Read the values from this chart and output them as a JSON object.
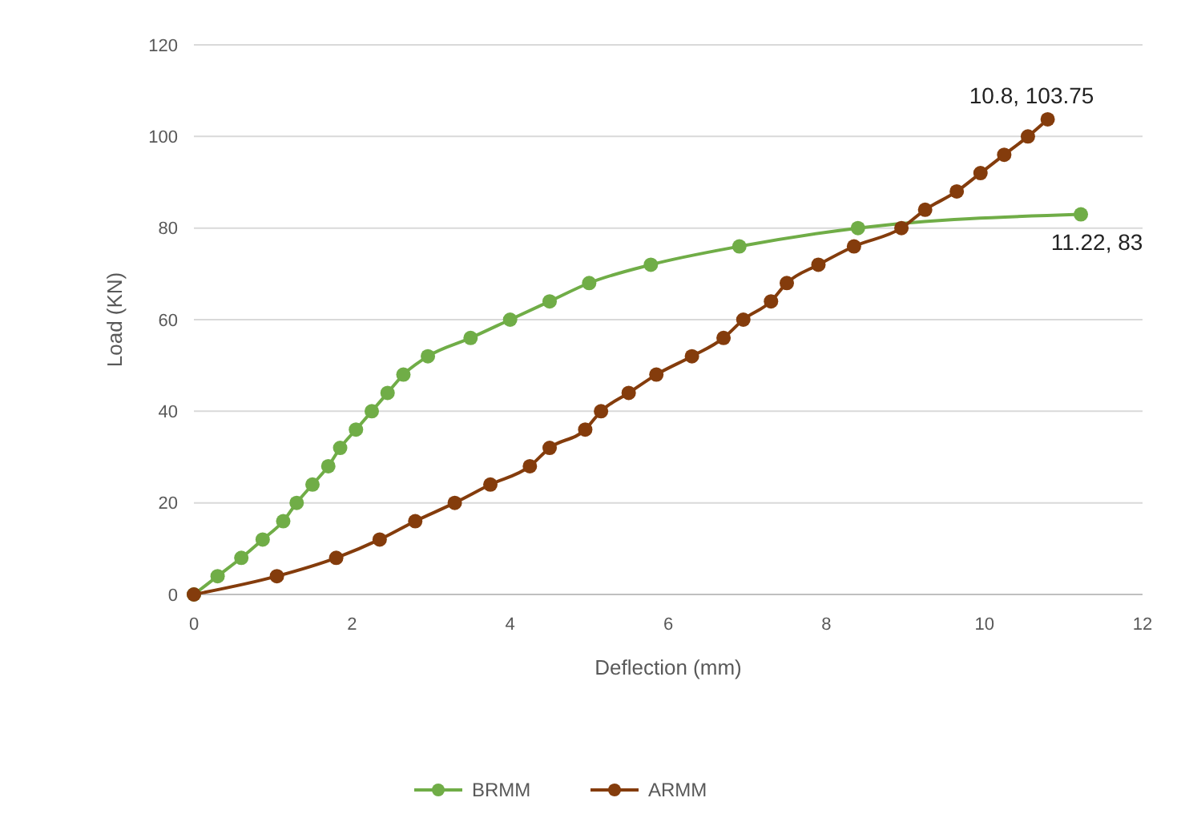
{
  "chart_data": {
    "type": "line",
    "xlabel": "Deflection (mm)",
    "ylabel": "Load (KN)",
    "xlim": [
      0,
      12
    ],
    "xticks": [
      0,
      2,
      4,
      6,
      8,
      10,
      12
    ],
    "ylim": [
      0,
      120
    ],
    "yticks": [
      0,
      20,
      40,
      60,
      80,
      100,
      120
    ],
    "grid": "y",
    "legend": "bottom",
    "marker": "circle",
    "line_style": "solid",
    "series": [
      {
        "name": "BRMM",
        "color": "#70ad47",
        "x": [
          0,
          0.3,
          0.6,
          0.87,
          1.13,
          1.3,
          1.5,
          1.7,
          1.85,
          2.05,
          2.25,
          2.45,
          2.65,
          2.96,
          3.5,
          4.0,
          4.5,
          5.0,
          5.78,
          6.9,
          8.4,
          11.22
        ],
        "values": [
          0,
          4,
          8,
          12,
          16,
          20,
          24,
          28,
          32,
          36,
          40,
          44,
          48,
          52,
          56,
          60,
          64,
          68,
          72,
          76,
          80,
          83
        ]
      },
      {
        "name": "ARMM",
        "color": "#843c0c",
        "x": [
          0,
          1.05,
          1.8,
          2.35,
          2.8,
          3.3,
          3.75,
          4.25,
          4.5,
          4.95,
          5.15,
          5.5,
          5.85,
          6.3,
          6.7,
          6.95,
          7.3,
          7.5,
          7.9,
          8.35,
          8.95,
          9.25,
          9.65,
          9.95,
          10.25,
          10.55,
          10.8
        ],
        "values": [
          0,
          4,
          8,
          12,
          16,
          20,
          24,
          28,
          32,
          36,
          40,
          44,
          48,
          52,
          56,
          60,
          64,
          68,
          72,
          76,
          80,
          84,
          88,
          92,
          96,
          100,
          103.75
        ]
      }
    ],
    "annotations": [
      {
        "text": "10.8, 103.75",
        "x": 10.8,
        "y": 103.75
      },
      {
        "text": "11.22, 83",
        "x": 11.22,
        "y": 83
      }
    ]
  }
}
